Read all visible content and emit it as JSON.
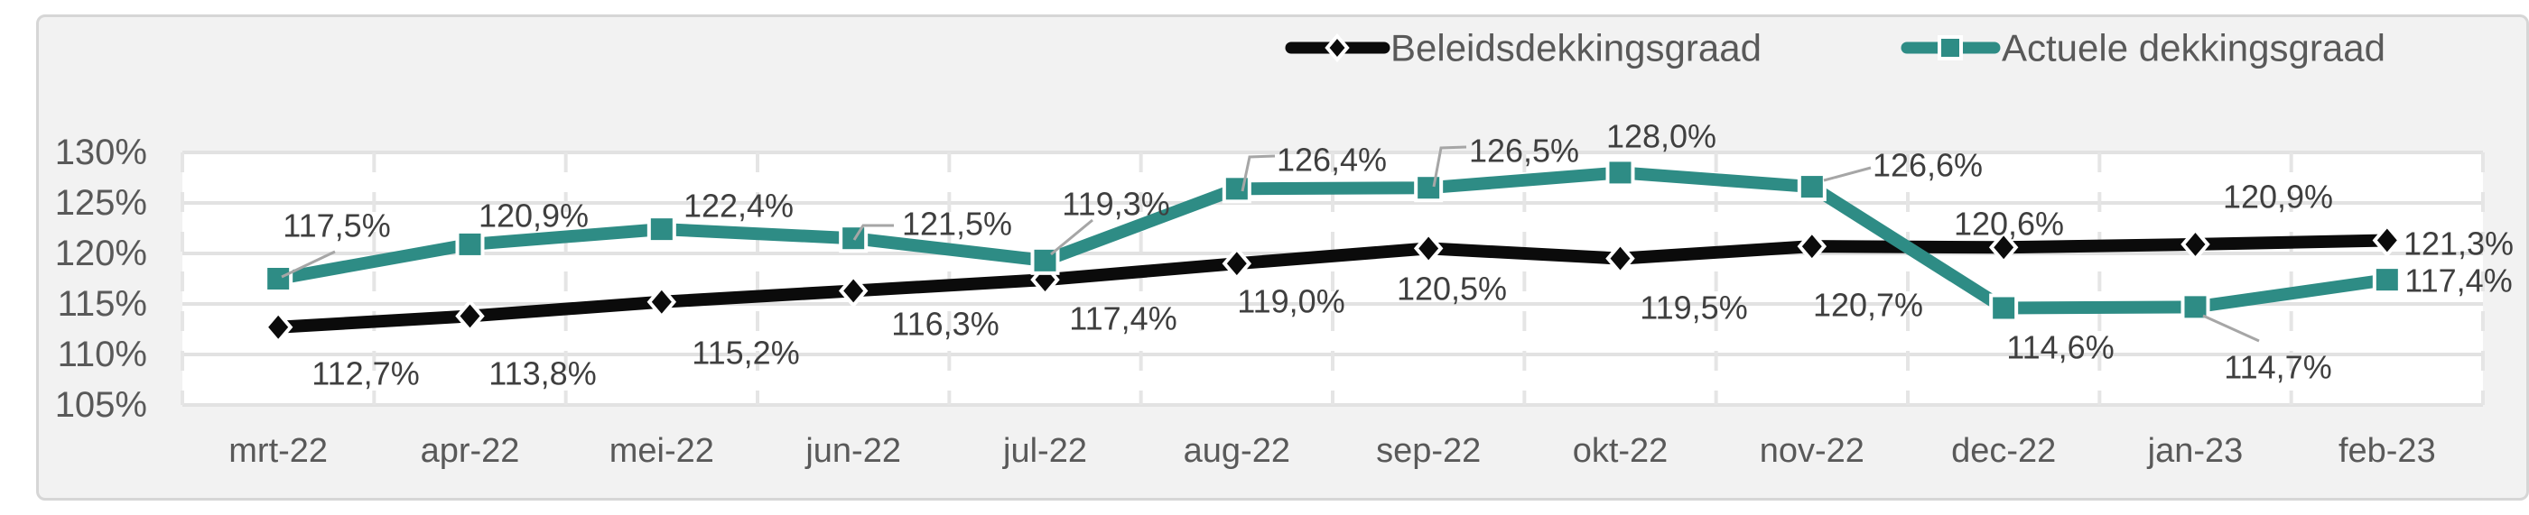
{
  "chart_data": {
    "type": "line",
    "title": "",
    "categories": [
      "mrt-22",
      "apr-22",
      "mei-22",
      "jun-22",
      "jul-22",
      "aug-22",
      "sep-22",
      "okt-22",
      "nov-22",
      "dec-22",
      "jan-23",
      "feb-23"
    ],
    "y_axis": {
      "min": 105,
      "max": 130,
      "step": 5,
      "tick_labels": [
        "105%",
        "110%",
        "115%",
        "120%",
        "125%",
        "130%"
      ],
      "grid": "solid"
    },
    "x_axis": {
      "grid": "dashed"
    },
    "legend": {
      "position": "top-right",
      "items": [
        "Beleidsdekkingsgraad",
        "Actuele dekkingsgraad"
      ]
    },
    "series": [
      {
        "name": "Beleidsdekkingsgraad",
        "color": "#0b0b0b",
        "marker": "diamond",
        "values": [
          112.7,
          113.8,
          115.2,
          116.3,
          117.4,
          119.0,
          120.5,
          119.5,
          120.7,
          120.6,
          120.9,
          121.3
        ],
        "labels": [
          "112,7%",
          "113,8%",
          "115,2%",
          "116,3%",
          "117,4%",
          "119,0%",
          "120,5%",
          "119,5%",
          "120,7%",
          "120,6%",
          "120,9%",
          "121,3%"
        ]
      },
      {
        "name": "Actuele dekkingsgraad",
        "color": "#2e8c85",
        "marker": "square",
        "values": [
          117.5,
          120.9,
          122.4,
          121.5,
          119.3,
          126.4,
          126.5,
          128.0,
          126.6,
          114.6,
          114.7,
          117.4
        ],
        "labels": [
          "117,5%",
          "120,9%",
          "122,4%",
          "121,5%",
          "119,3%",
          "126,4%",
          "126,5%",
          "128,0%",
          "126,6%",
          "114,6%",
          "114,7%",
          "117,4%"
        ]
      }
    ],
    "colors": {
      "plot_background": "#ffffff",
      "page_background": "#f2f2f2",
      "gridline": "#e2e2e2",
      "gridline_vertical": "#e5e5e5",
      "axis_text": "#595959",
      "data_label_text": "#3f3f3f",
      "legend_text": "#595959",
      "leader_line": "#a6a6a6",
      "marker_outline": "#ffffff"
    }
  }
}
